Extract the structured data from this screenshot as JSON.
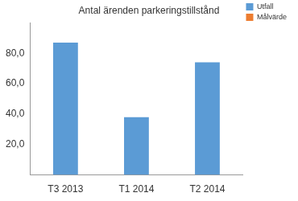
{
  "chart_data": {
    "type": "bar",
    "title": "Antal ärenden parkeringstillstånd",
    "categories": [
      "T3 2013",
      "T1 2014",
      "T2 2014"
    ],
    "series": [
      {
        "name": "Utfall",
        "color": "#5b9bd5",
        "values": [
          87,
          38,
          74
        ]
      },
      {
        "name": "Målvärde",
        "color": "#ed7d31",
        "values": [
          null,
          null,
          null
        ]
      }
    ],
    "ylim": [
      0,
      100
    ],
    "yticks": [
      {
        "value": 20,
        "label": "20,0"
      },
      {
        "value": 40,
        "label": "40,0"
      },
      {
        "value": 60,
        "label": "60,0"
      },
      {
        "value": 80,
        "label": "80,0"
      }
    ],
    "grid": false,
    "legend": "top-right"
  }
}
